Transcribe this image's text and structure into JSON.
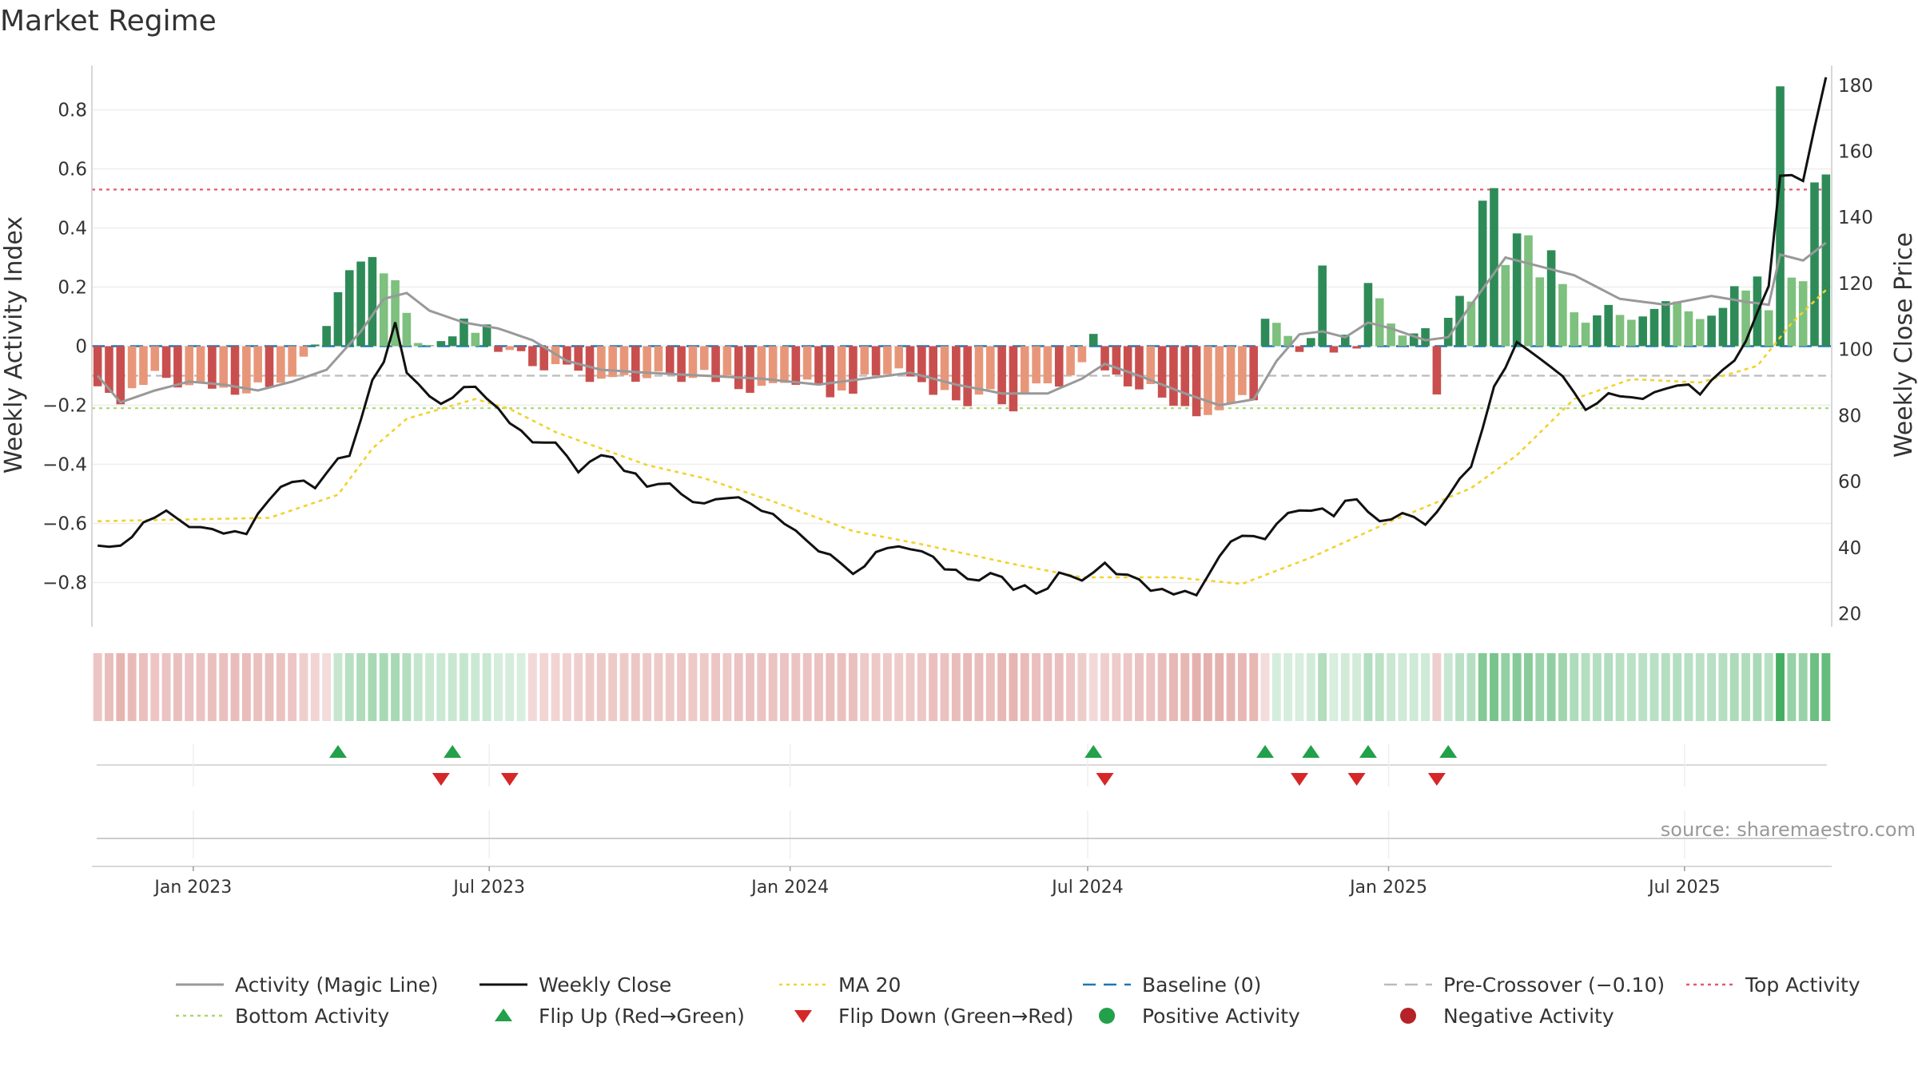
{
  "chart_data": {
    "type": "bar",
    "title": "Market Regime",
    "ylabel_left": "Weekly Activity Index",
    "ylabel_right": "Weekly Close Price",
    "source": "source: sharemaestro.com",
    "left_axis": {
      "ylim": [
        -0.95,
        0.95
      ],
      "ticks": [
        0.8,
        0.6,
        0.4,
        0.2,
        0,
        -0.2,
        -0.4,
        -0.6,
        -0.8
      ],
      "tick_labels": [
        "0.8",
        "0.6",
        "0.4",
        "0.2",
        "0",
        "−0.2",
        "−0.4",
        "−0.6",
        "−0.8"
      ]
    },
    "right_axis": {
      "ylim": [
        16,
        186
      ],
      "ticks": [
        180,
        160,
        140,
        120,
        100,
        80,
        60,
        40,
        20
      ],
      "tick_labels": [
        "180",
        "160",
        "140",
        "120",
        "100",
        "80",
        "60",
        "40",
        "20"
      ]
    },
    "x_range": [
      "2022-10-31",
      "2025-09-29"
    ],
    "x_ticks": [
      {
        "date": "2023-01-01",
        "label": "Jan 2023"
      },
      {
        "date": "2023-07-01",
        "label": "Jul 2023"
      },
      {
        "date": "2024-01-01",
        "label": "Jan 2024"
      },
      {
        "date": "2024-07-01",
        "label": "Jul 2024"
      },
      {
        "date": "2025-01-01",
        "label": "Jan 2025"
      },
      {
        "date": "2025-07-01",
        "label": "Jul 2025"
      }
    ],
    "reference_lines": [
      {
        "name": "Baseline (0)",
        "value": 0,
        "color": "#1f77b4"
      },
      {
        "name": "Pre-Crossover (−0.10)",
        "value": -0.1,
        "color": "#bbbbbb"
      },
      {
        "name": "Top Activity",
        "value": 0.53,
        "color": "#e05a73"
      },
      {
        "name": "Bottom Activity",
        "value": -0.21,
        "color": "#a8d86e"
      }
    ],
    "colors": {
      "positive_strong": "#2e8b57",
      "positive_weak": "#7ec07e",
      "negative_strong": "#c94f4f",
      "negative_weak": "#e8967a",
      "magic_line": "#999999",
      "close_line": "#111111",
      "ma_line": "#f2d22e",
      "flip_up": "#22a04a",
      "flip_down": "#d62728"
    },
    "weekly_keyframes": {
      "activity": [
        [
          "2022-10-31",
          -0.12
        ],
        [
          "2022-11-07",
          -0.17
        ],
        [
          "2022-11-14",
          -0.2
        ],
        [
          "2022-11-21",
          -0.14
        ],
        [
          "2022-12-05",
          -0.1
        ],
        [
          "2022-12-19",
          -0.14
        ],
        [
          "2023-01-09",
          -0.12
        ],
        [
          "2023-01-23",
          -0.17
        ],
        [
          "2023-02-06",
          -0.14
        ],
        [
          "2023-02-20",
          -0.12
        ],
        [
          "2023-03-06",
          -0.06
        ],
        [
          "2023-03-20",
          0.05
        ],
        [
          "2023-04-03",
          0.28
        ],
        [
          "2023-04-17",
          0.28
        ],
        [
          "2023-04-24",
          0.26
        ],
        [
          "2023-05-01",
          0.21
        ],
        [
          "2023-05-08",
          0.13
        ],
        [
          "2023-05-15",
          -0.01
        ],
        [
          "2023-05-22",
          0.02
        ],
        [
          "2023-06-05",
          0.03
        ],
        [
          "2023-06-12",
          0.1
        ],
        [
          "2023-06-19",
          0.05
        ],
        [
          "2023-06-26",
          0.07
        ],
        [
          "2023-07-03",
          0.0
        ],
        [
          "2023-07-17",
          -0.04
        ],
        [
          "2023-07-31",
          -0.07
        ],
        [
          "2023-08-14",
          -0.08
        ],
        [
          "2023-08-28",
          -0.1
        ],
        [
          "2023-09-11",
          -0.12
        ],
        [
          "2023-09-25",
          -0.1
        ],
        [
          "2023-10-09",
          -0.11
        ],
        [
          "2023-10-23",
          -0.12
        ],
        [
          "2023-11-06",
          -0.08
        ],
        [
          "2023-11-20",
          -0.12
        ],
        [
          "2023-12-04",
          -0.15
        ],
        [
          "2023-12-18",
          -0.13
        ],
        [
          "2024-01-01",
          -0.12
        ],
        [
          "2024-01-15",
          -0.15
        ],
        [
          "2024-01-29",
          -0.16
        ],
        [
          "2024-02-05",
          -0.14
        ],
        [
          "2024-02-19",
          -0.1
        ],
        [
          "2024-03-04",
          -0.08
        ],
        [
          "2024-03-18",
          -0.12
        ],
        [
          "2024-04-01",
          -0.16
        ],
        [
          "2024-04-15",
          -0.19
        ],
        [
          "2024-04-29",
          -0.17
        ],
        [
          "2024-05-13",
          -0.2
        ],
        [
          "2024-05-27",
          -0.12
        ],
        [
          "2024-06-10",
          -0.15
        ],
        [
          "2024-06-24",
          -0.06
        ],
        [
          "2024-07-01",
          0.06
        ],
        [
          "2024-07-08",
          -0.08
        ],
        [
          "2024-07-22",
          -0.12
        ],
        [
          "2024-08-05",
          -0.15
        ],
        [
          "2024-08-19",
          -0.21
        ],
        [
          "2024-09-02",
          -0.23
        ],
        [
          "2024-09-09",
          -0.25
        ],
        [
          "2024-09-23",
          -0.18
        ],
        [
          "2024-10-07",
          -0.16
        ],
        [
          "2024-10-14",
          0.1
        ],
        [
          "2024-10-21",
          0.06
        ],
        [
          "2024-10-28",
          0.05
        ],
        [
          "2024-11-04",
          -0.04
        ],
        [
          "2024-11-11",
          0.02
        ],
        [
          "2024-11-18",
          0.26
        ],
        [
          "2024-11-25",
          0.0
        ],
        [
          "2024-12-02",
          0.03
        ],
        [
          "2024-12-09",
          -0.03
        ],
        [
          "2024-12-16",
          0.21
        ],
        [
          "2024-12-23",
          0.16
        ],
        [
          "2024-12-30",
          0.07
        ],
        [
          "2025-01-06",
          0.03
        ],
        [
          "2025-01-13",
          0.02
        ],
        [
          "2025-01-20",
          0.04
        ],
        [
          "2025-01-27",
          -0.14
        ],
        [
          "2025-02-03",
          0.08
        ],
        [
          "2025-02-10",
          0.15
        ],
        [
          "2025-02-17",
          0.16
        ],
        [
          "2025-02-24",
          0.51
        ],
        [
          "2025-03-03",
          0.51
        ],
        [
          "2025-03-10",
          0.27
        ],
        [
          "2025-03-17",
          0.37
        ],
        [
          "2025-03-24",
          0.37
        ],
        [
          "2025-03-31",
          0.22
        ],
        [
          "2025-04-07",
          0.32
        ],
        [
          "2025-04-14",
          0.22
        ],
        [
          "2025-04-21",
          0.13
        ],
        [
          "2025-04-28",
          0.1
        ],
        [
          "2025-05-12",
          0.12
        ],
        [
          "2025-05-26",
          0.1
        ],
        [
          "2025-06-09",
          0.15
        ],
        [
          "2025-06-23",
          0.15
        ],
        [
          "2025-07-07",
          0.1
        ],
        [
          "2025-07-21",
          0.15
        ],
        [
          "2025-08-04",
          0.21
        ],
        [
          "2025-08-11",
          0.25
        ],
        [
          "2025-08-18",
          0.12
        ],
        [
          "2025-08-25",
          0.88
        ],
        [
          "2025-09-01",
          0.24
        ],
        [
          "2025-09-08",
          0.24
        ],
        [
          "2025-09-15",
          0.56
        ]
      ],
      "magic_line": [
        [
          "2022-10-31",
          -0.1
        ],
        [
          "2022-11-14",
          -0.19
        ],
        [
          "2022-12-05",
          -0.15
        ],
        [
          "2022-12-26",
          -0.12
        ],
        [
          "2023-01-16",
          -0.13
        ],
        [
          "2023-02-06",
          -0.15
        ],
        [
          "2023-02-27",
          -0.12
        ],
        [
          "2023-03-20",
          -0.08
        ],
        [
          "2023-04-10",
          0.05
        ],
        [
          "2023-04-24",
          0.16
        ],
        [
          "2023-05-08",
          0.18
        ],
        [
          "2023-05-22",
          0.12
        ],
        [
          "2023-06-12",
          0.08
        ],
        [
          "2023-07-03",
          0.06
        ],
        [
          "2023-07-24",
          0.02
        ],
        [
          "2023-08-14",
          -0.05
        ],
        [
          "2023-09-04",
          -0.08
        ],
        [
          "2023-10-02",
          -0.09
        ],
        [
          "2023-11-06",
          -0.1
        ],
        [
          "2023-12-11",
          -0.11
        ],
        [
          "2024-01-15",
          -0.13
        ],
        [
          "2024-02-12",
          -0.11
        ],
        [
          "2024-03-11",
          -0.09
        ],
        [
          "2024-04-08",
          -0.13
        ],
        [
          "2024-05-06",
          -0.16
        ],
        [
          "2024-06-03",
          -0.16
        ],
        [
          "2024-06-24",
          -0.11
        ],
        [
          "2024-07-08",
          -0.06
        ],
        [
          "2024-07-29",
          -0.1
        ],
        [
          "2024-08-26",
          -0.16
        ],
        [
          "2024-09-16",
          -0.2
        ],
        [
          "2024-10-07",
          -0.18
        ],
        [
          "2024-10-21",
          -0.05
        ],
        [
          "2024-11-04",
          0.04
        ],
        [
          "2024-11-18",
          0.05
        ],
        [
          "2024-12-02",
          0.03
        ],
        [
          "2024-12-16",
          0.08
        ],
        [
          "2024-12-30",
          0.06
        ],
        [
          "2025-01-20",
          0.02
        ],
        [
          "2025-02-03",
          0.03
        ],
        [
          "2025-02-17",
          0.14
        ],
        [
          "2025-03-10",
          0.3
        ],
        [
          "2025-03-24",
          0.28
        ],
        [
          "2025-04-21",
          0.24
        ],
        [
          "2025-05-19",
          0.16
        ],
        [
          "2025-06-16",
          0.14
        ],
        [
          "2025-07-14",
          0.17
        ],
        [
          "2025-08-04",
          0.15
        ],
        [
          "2025-08-18",
          0.14
        ],
        [
          "2025-08-25",
          0.31
        ],
        [
          "2025-09-08",
          0.29
        ],
        [
          "2025-09-22",
          0.35
        ]
      ],
      "close": [
        [
          "2022-10-31",
          42
        ],
        [
          "2022-11-14",
          41
        ],
        [
          "2022-12-05",
          49
        ],
        [
          "2022-12-12",
          51
        ],
        [
          "2022-12-26",
          46
        ],
        [
          "2023-01-09",
          46
        ],
        [
          "2023-01-16",
          43
        ],
        [
          "2023-01-30",
          45
        ],
        [
          "2023-02-13",
          54
        ],
        [
          "2023-02-27",
          60
        ],
        [
          "2023-03-13",
          58
        ],
        [
          "2023-03-27",
          67
        ],
        [
          "2023-04-03",
          69
        ],
        [
          "2023-04-17",
          91
        ],
        [
          "2023-04-24",
          95
        ],
        [
          "2023-05-01",
          108
        ],
        [
          "2023-05-08",
          94
        ],
        [
          "2023-05-22",
          85
        ],
        [
          "2023-06-05",
          85
        ],
        [
          "2023-06-12",
          90
        ],
        [
          "2023-06-19",
          89
        ],
        [
          "2023-06-26",
          86
        ],
        [
          "2023-07-10",
          77
        ],
        [
          "2023-07-24",
          72
        ],
        [
          "2023-08-07",
          72
        ],
        [
          "2023-08-21",
          64
        ],
        [
          "2023-09-04",
          68
        ],
        [
          "2023-09-18",
          64
        ],
        [
          "2023-10-02",
          58
        ],
        [
          "2023-10-16",
          59
        ],
        [
          "2023-10-30",
          54
        ],
        [
          "2023-11-13",
          55
        ],
        [
          "2023-11-27",
          54
        ],
        [
          "2023-12-11",
          52
        ],
        [
          "2023-12-25",
          46
        ],
        [
          "2024-01-08",
          42
        ],
        [
          "2024-01-22",
          37
        ],
        [
          "2024-02-05",
          32
        ],
        [
          "2024-02-19",
          38
        ],
        [
          "2024-03-04",
          40
        ],
        [
          "2024-03-18",
          38
        ],
        [
          "2024-04-01",
          34
        ],
        [
          "2024-04-15",
          30
        ],
        [
          "2024-04-29",
          32
        ],
        [
          "2024-05-13",
          28
        ],
        [
          "2024-05-27",
          27
        ],
        [
          "2024-06-10",
          31
        ],
        [
          "2024-06-24",
          30
        ],
        [
          "2024-07-08",
          34
        ],
        [
          "2024-07-22",
          31
        ],
        [
          "2024-08-05",
          28
        ],
        [
          "2024-08-19",
          26
        ],
        [
          "2024-09-02",
          27
        ],
        [
          "2024-09-16",
          36
        ],
        [
          "2024-09-30",
          45
        ],
        [
          "2024-10-14",
          43
        ],
        [
          "2024-10-28",
          49
        ],
        [
          "2024-11-11",
          51
        ],
        [
          "2024-11-25",
          50
        ],
        [
          "2024-12-09",
          56
        ],
        [
          "2024-12-23",
          47
        ],
        [
          "2025-01-06",
          51
        ],
        [
          "2025-01-20",
          48
        ],
        [
          "2025-02-03",
          56
        ],
        [
          "2025-02-17",
          64
        ],
        [
          "2025-03-03",
          88
        ],
        [
          "2025-03-17",
          102
        ],
        [
          "2025-03-31",
          97
        ],
        [
          "2025-04-14",
          93
        ],
        [
          "2025-04-28",
          82
        ],
        [
          "2025-05-12",
          88
        ],
        [
          "2025-05-26",
          85
        ],
        [
          "2025-06-09",
          87
        ],
        [
          "2025-06-23",
          90
        ],
        [
          "2025-07-07",
          87
        ],
        [
          "2025-07-21",
          94
        ],
        [
          "2025-08-04",
          102
        ],
        [
          "2025-08-18",
          120
        ],
        [
          "2025-08-25",
          152
        ],
        [
          "2025-09-08",
          152
        ],
        [
          "2025-09-22",
          182
        ]
      ],
      "ma20": [
        [
          "2022-10-31",
          48
        ],
        [
          "2023-02-13",
          49
        ],
        [
          "2023-03-27",
          56
        ],
        [
          "2023-04-17",
          70
        ],
        [
          "2023-05-08",
          79
        ],
        [
          "2023-06-19",
          85
        ],
        [
          "2023-07-10",
          82
        ],
        [
          "2023-08-07",
          75
        ],
        [
          "2023-09-04",
          70
        ],
        [
          "2023-10-02",
          65
        ],
        [
          "2023-11-06",
          61
        ],
        [
          "2023-12-18",
          54
        ],
        [
          "2024-02-05",
          45
        ],
        [
          "2024-03-18",
          41
        ],
        [
          "2024-05-13",
          35
        ],
        [
          "2024-06-24",
          31
        ],
        [
          "2024-08-19",
          31
        ],
        [
          "2024-09-30",
          29
        ],
        [
          "2024-11-11",
          37
        ],
        [
          "2024-12-30",
          48
        ],
        [
          "2025-02-17",
          58
        ],
        [
          "2025-03-17",
          68
        ],
        [
          "2025-04-21",
          85
        ],
        [
          "2025-05-26",
          91
        ],
        [
          "2025-07-07",
          90
        ],
        [
          "2025-08-11",
          95
        ],
        [
          "2025-09-01",
          108
        ],
        [
          "2025-09-22",
          118
        ]
      ]
    },
    "flips_up": [
      "2023-03-27",
      "2023-06-05",
      "2024-07-01",
      "2024-10-14",
      "2024-11-11",
      "2024-12-16",
      "2025-02-03"
    ],
    "flips_down": [
      "2023-05-29",
      "2023-07-10",
      "2024-07-08",
      "2024-11-04",
      "2024-12-09",
      "2025-01-27"
    ],
    "legend": [
      {
        "label": "Activity (Magic Line)",
        "kind": "line",
        "color": "#999999"
      },
      {
        "label": "Weekly Close",
        "kind": "line",
        "color": "#111111"
      },
      {
        "label": "MA 20",
        "kind": "dotted",
        "color": "#f2d22e"
      },
      {
        "label": "Baseline (0)",
        "kind": "dashed",
        "color": "#1f77b4"
      },
      {
        "label": "Pre-Crossover (−0.10)",
        "kind": "dashed",
        "color": "#bbbbbb"
      },
      {
        "label": "Top Activity",
        "kind": "dotted",
        "color": "#e05a73"
      },
      {
        "label": "Bottom Activity",
        "kind": "dotted",
        "color": "#a8d86e"
      },
      {
        "label": "Flip Up (Red→Green)",
        "kind": "triangle-up",
        "color": "#22a04a"
      },
      {
        "label": "Flip Down (Green→Red)",
        "kind": "triangle-down",
        "color": "#d62728"
      },
      {
        "label": "Positive Activity",
        "kind": "dot",
        "color": "#22a04a"
      },
      {
        "label": "Negative Activity",
        "kind": "dot",
        "color": "#b52228"
      }
    ]
  }
}
